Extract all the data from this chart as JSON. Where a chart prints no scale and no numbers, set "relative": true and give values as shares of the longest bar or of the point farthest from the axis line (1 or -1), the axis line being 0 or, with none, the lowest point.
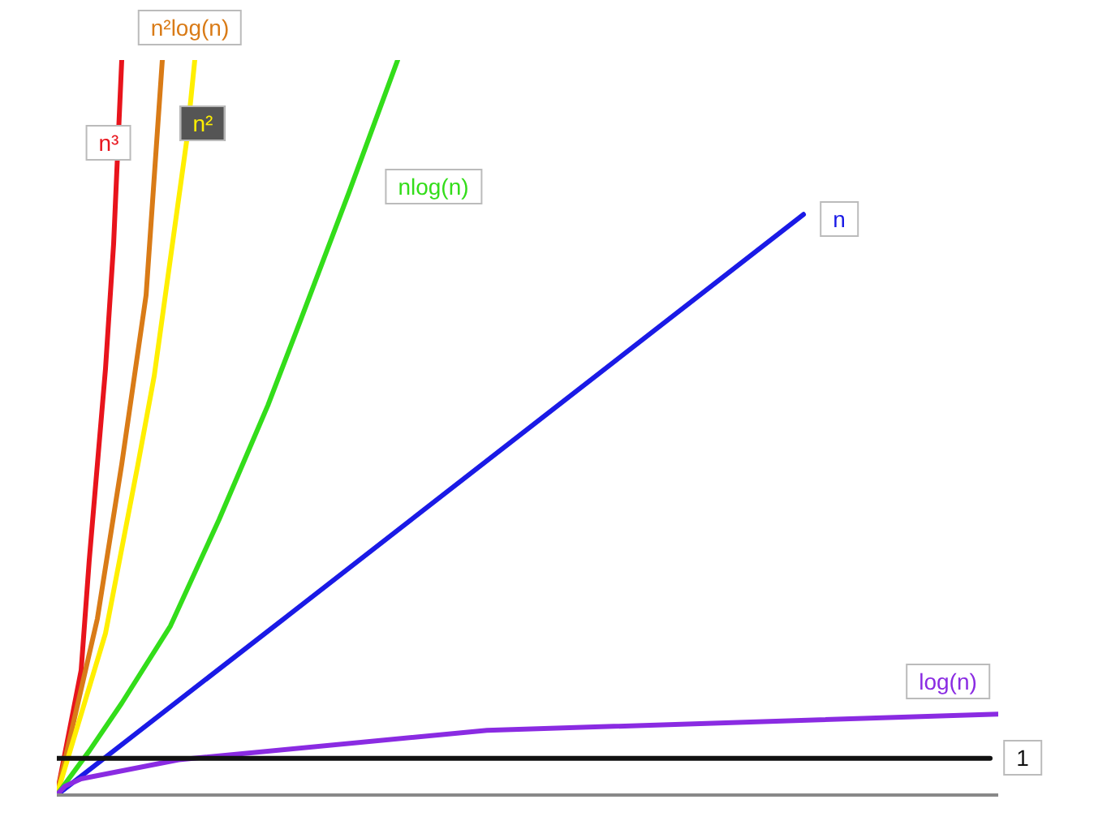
{
  "chart_data": {
    "type": "line",
    "relative": true,
    "tick_labels": false,
    "marker": "none",
    "line_style": "solid",
    "categories": [
      null,
      null,
      null,
      null,
      null,
      null,
      null,
      null,
      null,
      null,
      null,
      null,
      null,
      null,
      null,
      null,
      null,
      null,
      null,
      null,
      null,
      null,
      null,
      null,
      null,
      null,
      null,
      null,
      null,
      null,
      null,
      null,
      null,
      null,
      null,
      null,
      null,
      null,
      null,
      null,
      null,
      null,
      null,
      null,
      null,
      null,
      null,
      null,
      null,
      null,
      null,
      null,
      null,
      null,
      null,
      null,
      null,
      null,
      null,
      null,
      null,
      null,
      null,
      null,
      null,
      null,
      null,
      null,
      null,
      null,
      null,
      null,
      null,
      null,
      null,
      null,
      null,
      null,
      null,
      null,
      null,
      null,
      null,
      null,
      null,
      null,
      null,
      null,
      null,
      null,
      null,
      null,
      null,
      null,
      null,
      null,
      null,
      null,
      null,
      null,
      null,
      null,
      null,
      null,
      null,
      null,
      null,
      null,
      null,
      null,
      null,
      null,
      null,
      null,
      null,
      null,
      null
    ],
    "series": [
      {
        "name": "n³",
        "color": "#e8141c",
        "values": [
          0,
          null,
          null,
          0.17,
          0.32,
          null,
          0.58,
          0.75,
          1,
          null,
          null,
          null,
          null,
          null,
          null,
          null,
          null,
          null,
          null,
          null,
          null,
          null,
          null,
          null,
          null,
          null,
          null,
          null,
          null,
          null,
          null,
          null,
          null,
          null,
          null,
          null,
          null,
          null,
          null,
          null,
          null,
          null,
          null,
          null,
          null,
          null,
          null,
          null,
          null,
          null,
          null,
          null,
          null,
          null,
          null,
          null,
          null,
          null,
          null,
          null,
          null,
          null,
          null,
          null,
          null,
          null,
          null,
          null,
          null,
          null,
          null,
          null,
          null,
          null,
          null,
          null,
          null,
          null,
          null,
          null,
          null,
          null,
          null,
          null,
          null,
          null,
          null,
          null,
          null,
          null,
          null,
          null,
          null,
          null,
          null,
          null,
          null,
          null,
          null,
          null,
          null,
          null,
          null,
          null,
          null,
          null,
          null,
          null,
          null,
          null,
          null,
          null,
          null,
          null,
          null,
          null,
          null
        ]
      },
      {
        "name": "n²log(n)",
        "color": "#d97b17",
        "values": [
          0,
          null,
          null,
          null,
          null,
          0.24,
          null,
          null,
          0.45,
          null,
          null,
          0.68,
          null,
          1,
          null,
          null,
          null,
          null,
          null,
          null,
          null,
          null,
          null,
          null,
          null,
          null,
          null,
          null,
          null,
          null,
          null,
          null,
          null,
          null,
          null,
          null,
          null,
          null,
          null,
          null,
          null,
          null,
          null,
          null,
          null,
          null,
          null,
          null,
          null,
          null,
          null,
          null,
          null,
          null,
          null,
          null,
          null,
          null,
          null,
          null,
          null,
          null,
          null,
          null,
          null,
          null,
          null,
          null,
          null,
          null,
          null,
          null,
          null,
          null,
          null,
          null,
          null,
          null,
          null,
          null,
          null,
          null,
          null,
          null,
          null,
          null,
          null,
          null,
          null,
          null,
          null,
          null,
          null,
          null,
          null,
          null,
          null,
          null,
          null,
          null,
          null,
          null,
          null,
          null,
          null,
          null,
          null,
          null,
          null,
          null,
          null,
          null,
          null,
          null,
          null,
          null,
          null
        ]
      },
      {
        "name": "n²",
        "color": "#ffef00",
        "values": [
          0,
          null,
          null,
          null,
          null,
          null,
          0.22,
          null,
          null,
          null,
          0.45,
          null,
          0.57,
          null,
          0.73,
          null,
          0.89,
          1,
          null,
          null,
          null,
          null,
          null,
          null,
          null,
          null,
          null,
          null,
          null,
          null,
          null,
          null,
          null,
          null,
          null,
          null,
          null,
          null,
          null,
          null,
          null,
          null,
          null,
          null,
          null,
          null,
          null,
          null,
          null,
          null,
          null,
          null,
          null,
          null,
          null,
          null,
          null,
          null,
          null,
          null,
          null,
          null,
          null,
          null,
          null,
          null,
          null,
          null,
          null,
          null,
          null,
          null,
          null,
          null,
          null,
          null,
          null,
          null,
          null,
          null,
          null,
          null,
          null,
          null,
          null,
          null,
          null,
          null,
          null,
          null,
          null,
          null,
          null,
          null,
          null,
          null,
          null,
          null,
          null,
          null,
          null,
          null,
          null,
          null,
          null,
          null,
          null,
          null,
          null,
          null,
          null,
          null,
          null,
          null,
          null,
          null,
          null
        ]
      },
      {
        "name": "nlog(n)",
        "color": "#33dd1a",
        "values": [
          0,
          null,
          null,
          null,
          0.06,
          null,
          null,
          null,
          0.125,
          null,
          null,
          null,
          null,
          null,
          0.23,
          null,
          null,
          null,
          null,
          null,
          0.375,
          null,
          null,
          null,
          null,
          null,
          0.53,
          null,
          null,
          null,
          0.645,
          null,
          null,
          null,
          null,
          null,
          0.82,
          null,
          null,
          null,
          null,
          null,
          1,
          null,
          null,
          null,
          null,
          null,
          null,
          null,
          null,
          null,
          null,
          null,
          null,
          null,
          null,
          null,
          null,
          null,
          null,
          null,
          null,
          null,
          null,
          null,
          null,
          null,
          null,
          null,
          null,
          null,
          null,
          null,
          null,
          null,
          null,
          null,
          null,
          null,
          null,
          null,
          null,
          null,
          null,
          null,
          null,
          null,
          null,
          null,
          null,
          null,
          null,
          null,
          null,
          null,
          null,
          null,
          null,
          null,
          null,
          null,
          null,
          null,
          null,
          null,
          null,
          null,
          null,
          null,
          null,
          null,
          null,
          null,
          null,
          null,
          null
        ]
      },
      {
        "name": "n",
        "color": "#1a1ae6",
        "values": [
          0,
          null,
          null,
          null,
          null,
          null,
          null,
          null,
          null,
          null,
          null,
          null,
          null,
          null,
          null,
          null,
          null,
          null,
          null,
          null,
          null,
          null,
          null,
          null,
          null,
          null,
          null,
          null,
          0.24,
          null,
          null,
          null,
          null,
          null,
          null,
          null,
          null,
          null,
          null,
          null,
          null,
          null,
          null,
          null,
          null,
          null,
          null,
          null,
          null,
          null,
          null,
          null,
          null,
          null,
          null,
          null,
          null,
          null,
          null,
          null,
          null,
          null,
          null,
          null,
          null,
          null,
          null,
          null,
          null,
          null,
          null,
          null,
          null,
          null,
          null,
          null,
          null,
          null,
          null,
          null,
          null,
          null,
          null,
          null,
          null,
          null,
          null,
          null,
          null,
          null,
          null,
          null,
          0.79,
          null,
          null,
          null,
          null,
          null,
          null,
          null,
          null,
          null,
          null,
          null,
          null,
          null,
          null,
          null,
          null,
          null,
          null,
          null,
          null,
          null,
          null,
          null,
          null
        ]
      },
      {
        "name": "log(n)",
        "color": "#8a2be2",
        "values": [
          0,
          0.012,
          null,
          0.022,
          null,
          null,
          null,
          null,
          null,
          null,
          null,
          null,
          null,
          null,
          null,
          0.048,
          null,
          null,
          null,
          null,
          null,
          null,
          null,
          null,
          null,
          null,
          null,
          null,
          null,
          null,
          null,
          null,
          null,
          null,
          null,
          null,
          null,
          null,
          null,
          null,
          null,
          null,
          null,
          null,
          null,
          null,
          null,
          null,
          null,
          null,
          null,
          null,
          null,
          0.088,
          null,
          null,
          null,
          null,
          null,
          null,
          null,
          null,
          null,
          null,
          null,
          null,
          null,
          null,
          null,
          null,
          null,
          null,
          null,
          null,
          null,
          null,
          null,
          null,
          null,
          null,
          null,
          null,
          null,
          null,
          null,
          null,
          null,
          null,
          null,
          null,
          null,
          null,
          null,
          null,
          null,
          null,
          null,
          null,
          null,
          null,
          null,
          null,
          null,
          null,
          null,
          null,
          null,
          null,
          null,
          null,
          null,
          null,
          null,
          null,
          null,
          null,
          0.11
        ]
      },
      {
        "name": "1",
        "color": "#111111",
        "values": [
          0.05,
          null,
          null,
          null,
          null,
          null,
          null,
          null,
          null,
          null,
          null,
          null,
          null,
          null,
          null,
          null,
          null,
          null,
          null,
          null,
          null,
          null,
          null,
          null,
          null,
          null,
          null,
          null,
          null,
          null,
          null,
          null,
          null,
          null,
          null,
          null,
          null,
          null,
          null,
          null,
          null,
          null,
          null,
          null,
          null,
          null,
          null,
          null,
          null,
          null,
          null,
          null,
          null,
          null,
          null,
          null,
          null,
          null,
          null,
          null,
          null,
          null,
          null,
          null,
          null,
          null,
          null,
          null,
          null,
          null,
          null,
          null,
          null,
          null,
          null,
          null,
          null,
          null,
          null,
          null,
          null,
          null,
          null,
          null,
          null,
          null,
          null,
          null,
          null,
          null,
          null,
          null,
          null,
          null,
          null,
          null,
          null,
          null,
          null,
          null,
          null,
          null,
          null,
          null,
          null,
          null,
          null,
          null,
          null,
          null,
          null,
          null,
          null,
          null,
          null,
          0.05,
          null
        ]
      }
    ]
  }
}
